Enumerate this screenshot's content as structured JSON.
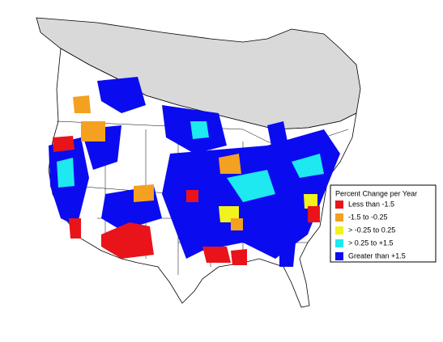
{
  "legend": {
    "title": "Percent Change per Year",
    "items": [
      {
        "label": "Less than -1.5",
        "color": "#e8141a"
      },
      {
        "label": "-1.5 to -0.25",
        "color": "#f4a020"
      },
      {
        "label": "> -0.25 to 0.25",
        "color": "#f2f21c"
      },
      {
        "label": "> 0.25 to +1.5",
        "color": "#1ee8f0"
      },
      {
        "label": "Greater than +1.5",
        "color": "#0b0bf0"
      }
    ]
  }
}
